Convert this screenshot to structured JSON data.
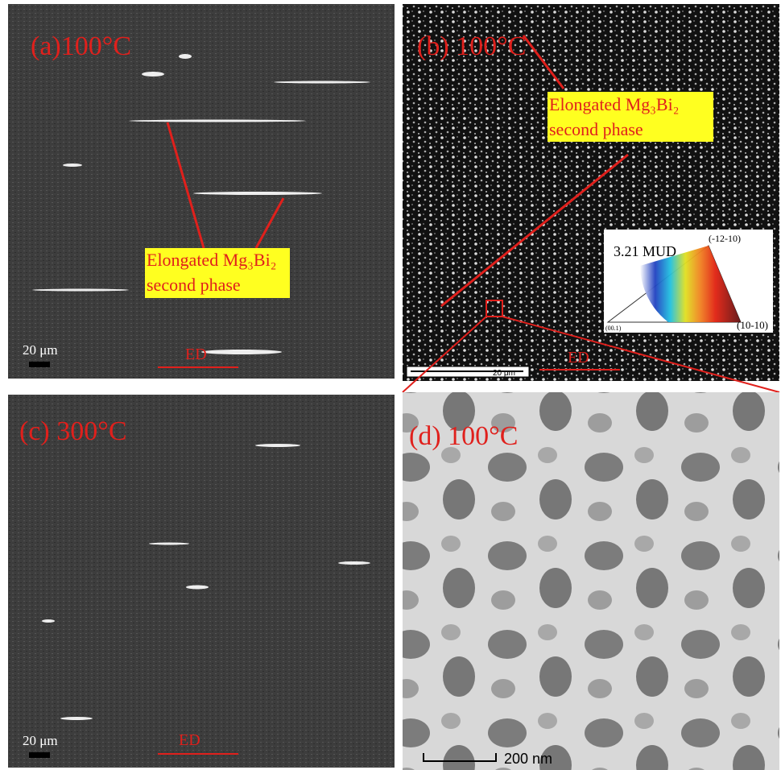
{
  "panels": [
    {
      "label": "(a)100°C",
      "annotation": [
        "Elongated Mg₃Bi₂",
        "second phase"
      ],
      "scale_bar": "20 μm",
      "direction": "ED"
    },
    {
      "label": "(b) 100°C",
      "annotation": [
        "Elongated Mg₃Bi₂",
        "second phase"
      ],
      "scale_bar": "20 μm",
      "direction": "ED",
      "inset": {
        "title": "3.21 MUD",
        "top": "(-12-10)",
        "left": "(00.1)",
        "right": "(10-10)"
      }
    },
    {
      "label": "(c) 300°C",
      "scale_bar": "20 μm",
      "direction": "ED"
    },
    {
      "label": "(d) 100°C",
      "scale_bar": "200 nm"
    }
  ]
}
